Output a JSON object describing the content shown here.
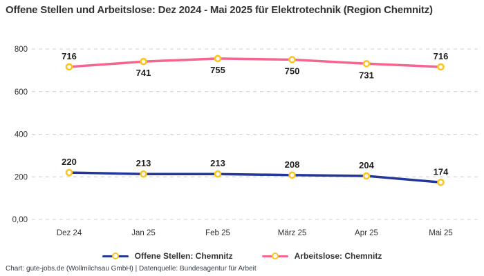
{
  "title": "Offene Stellen und Arbeitslose: Dez 2024 - Mai 2025 für Elektrotechnik (Region Chemnitz)",
  "footer": "Chart: gute-jobs.de (Wollmilchsau GmbH) | Datenquelle: Bundesagentur für Arbeit",
  "colors": {
    "offene_stellen_line": "#23379b",
    "arbeitslose_line": "#f4668f",
    "marker_ring": "#fdc521",
    "marker_fill": "#ffffff",
    "grid": "#cccccc",
    "axis_text": "#333333",
    "data_label": "#1f1f1f",
    "title_text": "#333333",
    "footer_text": "#333c48",
    "background": "#ffffff"
  },
  "chart_data": {
    "type": "line",
    "title": "Offene Stellen und Arbeitslose: Dez 2024 - Mai 2025 für Elektrotechnik (Region Chemnitz)",
    "categories": [
      "Dez 24",
      "Jan 25",
      "Feb 25",
      "März 25",
      "Apr 25",
      "Mai 25"
    ],
    "series": [
      {
        "name": "Offene Stellen: Chemnitz",
        "values": [
          220,
          213,
          213,
          208,
          204,
          174
        ],
        "color": "#23379b",
        "label_position": [
          "above",
          "above",
          "above",
          "above",
          "above",
          "above"
        ]
      },
      {
        "name": "Arbeitslose: Chemnitz",
        "values": [
          716,
          741,
          755,
          750,
          731,
          716
        ],
        "color": "#f4668f",
        "label_position": [
          "above",
          "below",
          "below",
          "below",
          "below",
          "above"
        ]
      }
    ],
    "xlabel": "",
    "ylabel": "",
    "ylim": [
      0,
      800
    ],
    "yticks": [
      {
        "value": 0,
        "label": "0,00"
      },
      {
        "value": 200,
        "label": "200"
      },
      {
        "value": 400,
        "label": "400"
      },
      {
        "value": 600,
        "label": "600"
      },
      {
        "value": 800,
        "label": "800"
      }
    ],
    "grid": "horizontal-dashed",
    "legend_position": "bottom",
    "marker": "ring-gold-white"
  }
}
